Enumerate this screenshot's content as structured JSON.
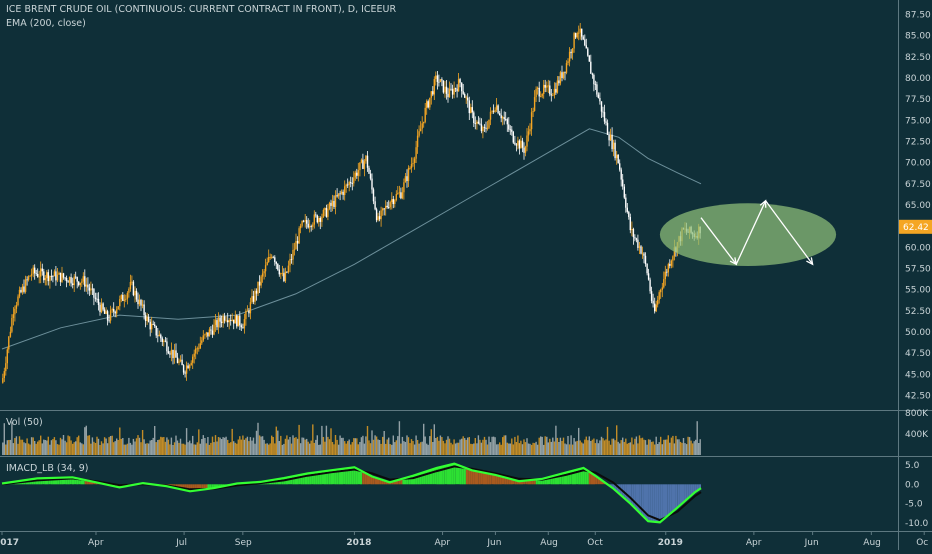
{
  "header": {
    "symbol": "ICE BRENT CRUDE OIL (CONTINUOUS: CURRENT CONTRACT IN FRONT), D, ICEEUR",
    "indicator": "EMA (200, close)"
  },
  "volume_pane": {
    "label": "Vol (50)"
  },
  "macd_pane": {
    "label": "IMACD_LB (34, 9)"
  },
  "colors": {
    "background": "#0f2f38",
    "candle_up": "#f5a623",
    "candle_down": "#ffffff",
    "ema": "#6c8f9a",
    "macd_green": "#33ff33",
    "macd_orange": "#c4621a",
    "macd_blue": "#5b7fc0",
    "ellipse": "#8fbf7a",
    "price_tag": "#f5a623",
    "axis_text": "#c9d4d7"
  },
  "chart_data": [
    {
      "type": "candlestick",
      "title": "ICE BRENT CRUDE OIL (CONTINUOUS: CURRENT CONTRACT IN FRONT), D, ICEEUR",
      "x_ticks": [
        "2017",
        "Apr",
        "Jul",
        "Sep",
        "2018",
        "Apr",
        "Jun",
        "Aug",
        "Oct",
        "2019",
        "Apr",
        "Jun",
        "Aug",
        "Oc"
      ],
      "y_ticks": [
        42.5,
        45.0,
        47.5,
        50.0,
        52.5,
        55.0,
        57.5,
        60.0,
        62.5,
        65.0,
        67.5,
        70.0,
        72.5,
        75.0,
        77.5,
        80.0,
        82.5,
        85.0,
        87.5
      ],
      "ylim": [
        41.5,
        88.5
      ],
      "current_price": "62.42",
      "close_path": [
        {
          "x": 0,
          "y": 44
        },
        {
          "x": 2,
          "y": 53
        },
        {
          "x": 5,
          "y": 57
        },
        {
          "x": 10,
          "y": 56.5
        },
        {
          "x": 14,
          "y": 56
        },
        {
          "x": 18,
          "y": 51.5
        },
        {
          "x": 22,
          "y": 55.5
        },
        {
          "x": 25,
          "y": 51
        },
        {
          "x": 28,
          "y": 48.5
        },
        {
          "x": 31,
          "y": 45.5
        },
        {
          "x": 34,
          "y": 49
        },
        {
          "x": 38,
          "y": 52
        },
        {
          "x": 41,
          "y": 51
        },
        {
          "x": 44,
          "y": 56
        },
        {
          "x": 46,
          "y": 59.5
        },
        {
          "x": 48,
          "y": 56
        },
        {
          "x": 51,
          "y": 62.5
        },
        {
          "x": 55,
          "y": 64
        },
        {
          "x": 59,
          "y": 67.5
        },
        {
          "x": 62,
          "y": 70.5
        },
        {
          "x": 64,
          "y": 63
        },
        {
          "x": 66,
          "y": 65.5
        },
        {
          "x": 68,
          "y": 66.5
        },
        {
          "x": 70,
          "y": 70.5
        },
        {
          "x": 72,
          "y": 76
        },
        {
          "x": 74,
          "y": 80
        },
        {
          "x": 76,
          "y": 78
        },
        {
          "x": 78,
          "y": 79.5
        },
        {
          "x": 80,
          "y": 75.5
        },
        {
          "x": 82,
          "y": 73.5
        },
        {
          "x": 84,
          "y": 77
        },
        {
          "x": 87,
          "y": 73
        },
        {
          "x": 89,
          "y": 71.5
        },
        {
          "x": 91,
          "y": 78.5
        },
        {
          "x": 94,
          "y": 78.5
        },
        {
          "x": 96,
          "y": 81.5
        },
        {
          "x": 98,
          "y": 86
        },
        {
          "x": 99,
          "y": 84
        },
        {
          "x": 101,
          "y": 79
        },
        {
          "x": 103,
          "y": 74
        },
        {
          "x": 105,
          "y": 70
        },
        {
          "x": 107,
          "y": 62
        },
        {
          "x": 109,
          "y": 59.5
        },
        {
          "x": 110,
          "y": 56.5
        },
        {
          "x": 111,
          "y": 52
        },
        {
          "x": 112,
          "y": 55
        },
        {
          "x": 114,
          "y": 59
        },
        {
          "x": 116,
          "y": 62
        },
        {
          "x": 118,
          "y": 61.5
        },
        {
          "x": 119,
          "y": 62.4
        }
      ],
      "ema_200": [
        {
          "x": 0,
          "y": 48
        },
        {
          "x": 10,
          "y": 50.5
        },
        {
          "x": 20,
          "y": 52
        },
        {
          "x": 30,
          "y": 51.5
        },
        {
          "x": 40,
          "y": 52
        },
        {
          "x": 50,
          "y": 54.5
        },
        {
          "x": 60,
          "y": 58
        },
        {
          "x": 70,
          "y": 62
        },
        {
          "x": 80,
          "y": 66
        },
        {
          "x": 90,
          "y": 70
        },
        {
          "x": 100,
          "y": 74
        },
        {
          "x": 105,
          "y": 73
        },
        {
          "x": 110,
          "y": 70.5
        },
        {
          "x": 115,
          "y": 68.8
        },
        {
          "x": 119,
          "y": 67.5
        }
      ],
      "forecast_path": [
        {
          "x": 119,
          "y": 63.5
        },
        {
          "x": 125,
          "y": 58
        },
        {
          "x": 130,
          "y": 65.5
        },
        {
          "x": 138,
          "y": 58
        }
      ],
      "forecast_zone": {
        "x_center": 127,
        "y_center": 61.5,
        "x_radius": 15,
        "y_radius": 3.7
      }
    },
    {
      "type": "bar",
      "title": "Vol (50)",
      "y_ticks": [
        "800K",
        "400K"
      ]
    },
    {
      "type": "area",
      "title": "IMACD_LB (34, 9)",
      "y_ticks": [
        5.0,
        0.0,
        -5.0,
        -10.0
      ],
      "ylim": [
        -11.5,
        6.5
      ],
      "macd": [
        {
          "x": 0,
          "y": 0.2
        },
        {
          "x": 6,
          "y": 1.5
        },
        {
          "x": 12,
          "y": 1.8
        },
        {
          "x": 16,
          "y": 0.5
        },
        {
          "x": 20,
          "y": -0.8
        },
        {
          "x": 24,
          "y": 0.3
        },
        {
          "x": 28,
          "y": -0.5
        },
        {
          "x": 32,
          "y": -1.8
        },
        {
          "x": 36,
          "y": -1.0
        },
        {
          "x": 40,
          "y": 0.2
        },
        {
          "x": 44,
          "y": 0.6
        },
        {
          "x": 48,
          "y": 1.6
        },
        {
          "x": 52,
          "y": 2.8
        },
        {
          "x": 56,
          "y": 3.6
        },
        {
          "x": 60,
          "y": 4.4
        },
        {
          "x": 63,
          "y": 2.0
        },
        {
          "x": 66,
          "y": 0.5
        },
        {
          "x": 70,
          "y": 2.2
        },
        {
          "x": 74,
          "y": 4.2
        },
        {
          "x": 77,
          "y": 5.3
        },
        {
          "x": 80,
          "y": 3.6
        },
        {
          "x": 84,
          "y": 2.4
        },
        {
          "x": 88,
          "y": 0.8
        },
        {
          "x": 92,
          "y": 1.4
        },
        {
          "x": 96,
          "y": 3.0
        },
        {
          "x": 99,
          "y": 4.2
        },
        {
          "x": 101,
          "y": 2.2
        },
        {
          "x": 104,
          "y": -1.0
        },
        {
          "x": 107,
          "y": -5.0
        },
        {
          "x": 110,
          "y": -9.5
        },
        {
          "x": 112,
          "y": -9.8
        },
        {
          "x": 115,
          "y": -6.0
        },
        {
          "x": 118,
          "y": -2.0
        },
        {
          "x": 119,
          "y": -1.0
        }
      ],
      "signal": [
        {
          "x": 0,
          "y": 0
        },
        {
          "x": 6,
          "y": 1.0
        },
        {
          "x": 12,
          "y": 1.5
        },
        {
          "x": 16,
          "y": 0.8
        },
        {
          "x": 20,
          "y": -0.2
        },
        {
          "x": 24,
          "y": 0.0
        },
        {
          "x": 28,
          "y": -0.3
        },
        {
          "x": 32,
          "y": -1.3
        },
        {
          "x": 36,
          "y": -1.2
        },
        {
          "x": 40,
          "y": -0.3
        },
        {
          "x": 44,
          "y": 0.3
        },
        {
          "x": 48,
          "y": 1.0
        },
        {
          "x": 52,
          "y": 2.2
        },
        {
          "x": 56,
          "y": 3.1
        },
        {
          "x": 60,
          "y": 3.8
        },
        {
          "x": 63,
          "y": 2.8
        },
        {
          "x": 66,
          "y": 1.2
        },
        {
          "x": 70,
          "y": 1.6
        },
        {
          "x": 74,
          "y": 3.4
        },
        {
          "x": 77,
          "y": 4.6
        },
        {
          "x": 80,
          "y": 4.0
        },
        {
          "x": 84,
          "y": 2.8
        },
        {
          "x": 88,
          "y": 1.4
        },
        {
          "x": 92,
          "y": 1.2
        },
        {
          "x": 96,
          "y": 2.4
        },
        {
          "x": 99,
          "y": 3.6
        },
        {
          "x": 101,
          "y": 3.0
        },
        {
          "x": 104,
          "y": 0.5
        },
        {
          "x": 107,
          "y": -3.5
        },
        {
          "x": 110,
          "y": -8.0
        },
        {
          "x": 112,
          "y": -9.2
        },
        {
          "x": 115,
          "y": -7.0
        },
        {
          "x": 118,
          "y": -3.0
        },
        {
          "x": 119,
          "y": -2.0
        }
      ]
    }
  ]
}
